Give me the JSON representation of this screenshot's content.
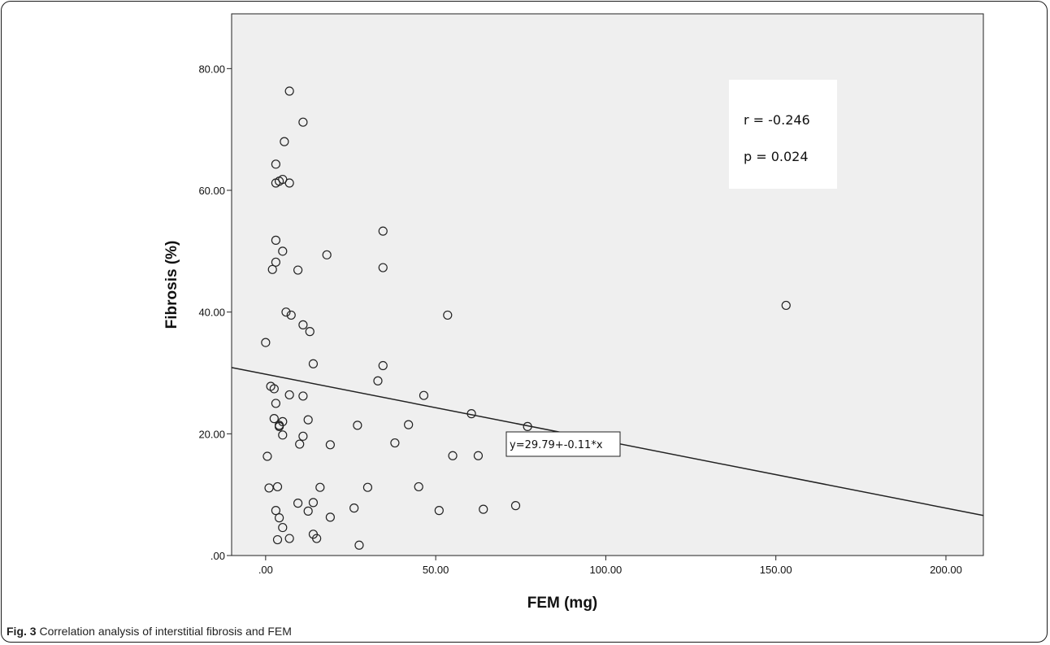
{
  "figure": {
    "caption_label": "Fig. 3",
    "caption_text": "Correlation analysis of interstitial fibrosis and FEM"
  },
  "chart_data": {
    "type": "scatter",
    "xlabel": "FEM (mg)",
    "ylabel": "Fibrosis (%)",
    "xlim": [
      -10,
      211
    ],
    "ylim": [
      0,
      89
    ],
    "xticks": [
      0,
      50,
      100,
      150,
      200
    ],
    "xtick_labels": [
      ".00",
      "50.00",
      "100.00",
      "150.00",
      "200.00"
    ],
    "yticks": [
      0,
      20,
      40,
      60,
      80
    ],
    "ytick_labels": [
      ".00",
      "20.00",
      "40.00",
      "60.00",
      "80.00"
    ],
    "grid": false,
    "plot_background": "#efefef",
    "points": [
      [
        7,
        76.3
      ],
      [
        11,
        71.2
      ],
      [
        5.5,
        68
      ],
      [
        3,
        64.3
      ],
      [
        3,
        61.2
      ],
      [
        4,
        61.5
      ],
      [
        5,
        61.8
      ],
      [
        7,
        61.2
      ],
      [
        3,
        51.8
      ],
      [
        3,
        48.2
      ],
      [
        5,
        50
      ],
      [
        2,
        47
      ],
      [
        9.5,
        46.9
      ],
      [
        18,
        49.4
      ],
      [
        34.5,
        53.3
      ],
      [
        34.5,
        47.3
      ],
      [
        6,
        40
      ],
      [
        7.5,
        39.5
      ],
      [
        11,
        37.9
      ],
      [
        13,
        36.8
      ],
      [
        0,
        35
      ],
      [
        14,
        31.5
      ],
      [
        34.5,
        31.2
      ],
      [
        33,
        28.7
      ],
      [
        1.5,
        27.8
      ],
      [
        2.5,
        27.4
      ],
      [
        7,
        26.4
      ],
      [
        11,
        26.2
      ],
      [
        3,
        25
      ],
      [
        46.5,
        26.3
      ],
      [
        2.5,
        22.5
      ],
      [
        5,
        22
      ],
      [
        4,
        21.4
      ],
      [
        4,
        21.2
      ],
      [
        12.5,
        22.3
      ],
      [
        27,
        21.4
      ],
      [
        42,
        21.5
      ],
      [
        60.5,
        23.3
      ],
      [
        77,
        21.2
      ],
      [
        53.5,
        39.5
      ],
      [
        5,
        19.8
      ],
      [
        11,
        19.6
      ],
      [
        10,
        18.3
      ],
      [
        19,
        18.2
      ],
      [
        38,
        18.5
      ],
      [
        73,
        18.1
      ],
      [
        0.5,
        16.3
      ],
      [
        55,
        16.4
      ],
      [
        62.5,
        16.4
      ],
      [
        1,
        11.1
      ],
      [
        3.5,
        11.3
      ],
      [
        16,
        11.2
      ],
      [
        30,
        11.2
      ],
      [
        45,
        11.3
      ],
      [
        9.5,
        8.6
      ],
      [
        14,
        8.7
      ],
      [
        3,
        7.4
      ],
      [
        12.5,
        7.3
      ],
      [
        26,
        7.8
      ],
      [
        51,
        7.4
      ],
      [
        64,
        7.6
      ],
      [
        73.5,
        8.2
      ],
      [
        4,
        6.2
      ],
      [
        19,
        6.3
      ],
      [
        5,
        4.6
      ],
      [
        14,
        3.5
      ],
      [
        3.5,
        2.6
      ],
      [
        7,
        2.8
      ],
      [
        15,
        2.8
      ],
      [
        27.5,
        1.7
      ],
      [
        153,
        41.1
      ]
    ],
    "regression": {
      "intercept": 29.79,
      "slope": -0.11,
      "equation_label": "y=29.79+-0.11*x"
    },
    "annotations": {
      "r": "r = -0.246",
      "p": "p = 0.024"
    }
  }
}
